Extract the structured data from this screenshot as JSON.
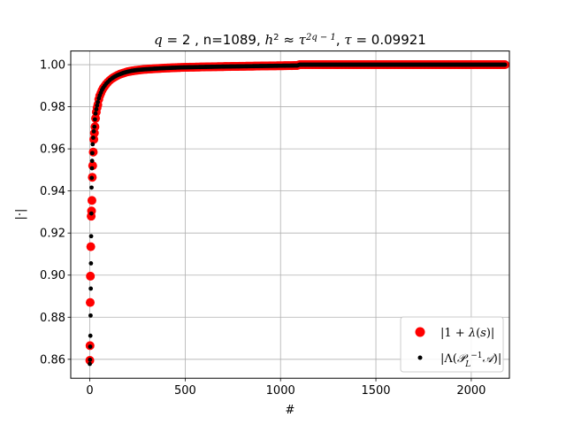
{
  "chart_data": {
    "type": "scatter",
    "title": "q = 2 , n=1089, h² ≈ τ^(2q−1), τ = 0.09921",
    "xlabel": "#",
    "ylabel": "|·|",
    "xlim": [
      -100,
      2200
    ],
    "ylim": [
      0.851,
      1.0065
    ],
    "x_ticks": [
      0,
      500,
      1000,
      1500,
      2000
    ],
    "y_ticks": [
      0.86,
      0.88,
      0.9,
      0.92,
      0.94,
      0.96,
      0.98,
      1.0
    ],
    "x_tick_labels": [
      "0",
      "500",
      "1000",
      "1500",
      "2000"
    ],
    "y_tick_labels": [
      "0.86",
      "0.88",
      "0.90",
      "0.92",
      "0.94",
      "0.96",
      "0.98",
      "1.00"
    ],
    "grid": true,
    "legend_position": "bottom-right",
    "series": [
      {
        "name": "|1 + λ(s)|",
        "color": "#ff0000",
        "marker": "large-circle",
        "x": [
          0,
          1,
          2,
          3,
          5,
          7,
          9,
          11,
          13,
          15,
          18,
          21,
          24,
          27,
          30,
          34,
          38,
          42,
          47,
          52,
          58,
          64,
          70,
          78,
          86,
          95,
          105,
          116,
          128,
          142,
          158,
          176,
          196,
          220,
          250,
          290,
          340,
          400,
          480,
          580,
          700,
          850,
          1000,
          1088,
          1100,
          1200,
          1400,
          1600,
          1800,
          2000,
          2100,
          2177
        ],
        "y": [
          0.8595,
          0.8665,
          0.887,
          0.8995,
          0.9135,
          0.928,
          0.9305,
          0.9355,
          0.9465,
          0.952,
          0.9585,
          0.9645,
          0.9675,
          0.9705,
          0.9745,
          0.9775,
          0.9795,
          0.981,
          0.9835,
          0.9852,
          0.9865,
          0.9878,
          0.9888,
          0.9898,
          0.9908,
          0.9917,
          0.9926,
          0.9934,
          0.9941,
          0.9948,
          0.9955,
          0.996,
          0.9966,
          0.997,
          0.9974,
          0.9978,
          0.9981,
          0.9984,
          0.9987,
          0.9989,
          0.9991,
          0.9993,
          0.9995,
          0.9996,
          1.0,
          1.0,
          1.0,
          1.0,
          1.0,
          1.0,
          1.0,
          1.0
        ]
      },
      {
        "name": "|Λ(P_L⁻¹ A)|",
        "color": "#000000",
        "marker": "small-dot",
        "x": [
          0,
          1,
          2,
          3,
          4,
          5,
          6,
          7,
          8,
          9,
          10,
          11,
          12,
          13,
          15,
          18,
          21,
          24,
          27,
          30,
          34,
          38,
          42,
          47,
          52,
          58,
          64,
          70,
          78,
          86,
          95,
          105,
          116,
          128,
          142,
          158,
          176,
          196,
          220,
          250,
          290,
          340,
          400,
          480,
          580,
          700,
          850,
          1000,
          1088,
          1100,
          1200,
          1400,
          1600,
          1800,
          2000,
          2100,
          2177
        ],
        "y": [
          0.8578,
          0.8598,
          0.866,
          0.8712,
          0.8808,
          0.8936,
          0.9056,
          0.9185,
          0.9293,
          0.9416,
          0.9462,
          0.9508,
          0.9543,
          0.958,
          0.9622,
          0.9653,
          0.9683,
          0.9705,
          0.974,
          0.9768,
          0.9788,
          0.9806,
          0.9822,
          0.984,
          0.9854,
          0.9867,
          0.988,
          0.989,
          0.99,
          0.991,
          0.9918,
          0.9927,
          0.9935,
          0.9942,
          0.9949,
          0.9955,
          0.9961,
          0.9966,
          0.9971,
          0.9975,
          0.9978,
          0.9981,
          0.9984,
          0.9987,
          0.9989,
          0.9991,
          0.9993,
          0.9995,
          0.9996,
          1.0,
          1.0,
          1.0,
          1.0,
          1.0,
          1.0,
          1.0,
          1.0
        ]
      }
    ]
  }
}
